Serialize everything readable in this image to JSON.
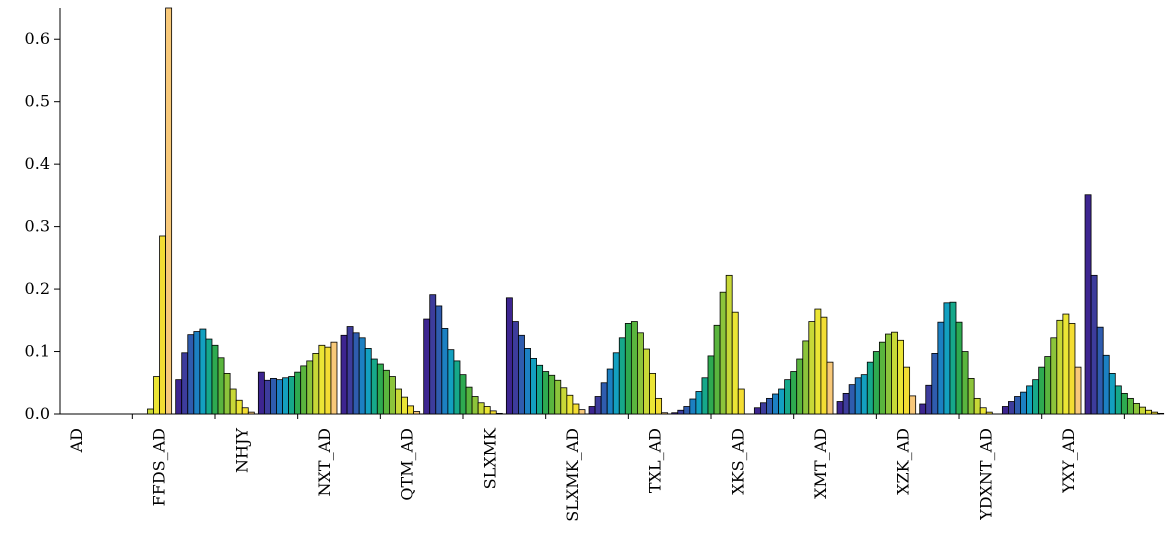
{
  "chart_data": {
    "type": "bar",
    "title": "",
    "xlabel": "",
    "ylabel": "",
    "ylim": [
      0,
      0.65
    ],
    "yticks": [
      0.0,
      0.1,
      0.2,
      0.3,
      0.4,
      0.5,
      0.6
    ],
    "ytick_labels": [
      "0.0",
      "0.1",
      "0.2",
      "0.3",
      "0.4",
      "0.5",
      "0.6"
    ],
    "bin_colors": [
      "#3d2590",
      "#3d3c9c",
      "#2f5cae",
      "#1c80c2",
      "#13a0c0",
      "#16a88a",
      "#2eaa50",
      "#5ab53e",
      "#8cc43b",
      "#c8d837",
      "#ebe535",
      "#f3dd33",
      "#f8c97a"
    ],
    "categories": [
      "AD",
      "FFDS_AD",
      "NHJY",
      "NXT_AD",
      "QTM_AD",
      "SLXMK",
      "SLXMK_AD",
      "TXL_AD",
      "XKS_AD",
      "XMT_AD",
      "XZK_AD",
      "YDXNT_AD",
      "YXY_AD"
    ],
    "series": [
      {
        "values": [
          0.0,
          0.0,
          0.0,
          0.0,
          0.0,
          0.0,
          0.0,
          0.0,
          0.0,
          0.008,
          0.06,
          0.285,
          0.65
        ]
      },
      {
        "values": [
          0.055,
          0.098,
          0.127,
          0.132,
          0.136,
          0.12,
          0.11,
          0.09,
          0.065,
          0.04,
          0.022,
          0.01,
          0.003
        ]
      },
      {
        "values": [
          0.067,
          0.054,
          0.057,
          0.055,
          0.058,
          0.06,
          0.067,
          0.077,
          0.085,
          0.097,
          0.11,
          0.107,
          0.115
        ]
      },
      {
        "values": [
          0.126,
          0.14,
          0.13,
          0.122,
          0.105,
          0.088,
          0.08,
          0.07,
          0.06,
          0.04,
          0.027,
          0.013,
          0.004
        ]
      },
      {
        "values": [
          0.152,
          0.191,
          0.173,
          0.137,
          0.103,
          0.085,
          0.063,
          0.043,
          0.028,
          0.018,
          0.012,
          0.005,
          0.001
        ]
      },
      {
        "values": [
          0.186,
          0.148,
          0.126,
          0.105,
          0.089,
          0.078,
          0.068,
          0.062,
          0.054,
          0.042,
          0.03,
          0.016,
          0.007
        ]
      },
      {
        "values": [
          0.012,
          0.028,
          0.05,
          0.072,
          0.098,
          0.122,
          0.145,
          0.148,
          0.13,
          0.104,
          0.065,
          0.025,
          0.002
        ]
      },
      {
        "values": [
          0.002,
          0.006,
          0.012,
          0.024,
          0.036,
          0.058,
          0.093,
          0.142,
          0.195,
          0.222,
          0.163,
          0.04,
          0.0
        ]
      },
      {
        "values": [
          0.01,
          0.018,
          0.025,
          0.032,
          0.04,
          0.055,
          0.068,
          0.088,
          0.117,
          0.148,
          0.168,
          0.155,
          0.083
        ]
      },
      {
        "values": [
          0.02,
          0.033,
          0.047,
          0.058,
          0.063,
          0.083,
          0.1,
          0.115,
          0.128,
          0.131,
          0.118,
          0.075,
          0.029
        ]
      },
      {
        "values": [
          0.016,
          0.046,
          0.097,
          0.147,
          0.178,
          0.179,
          0.147,
          0.1,
          0.057,
          0.025,
          0.01,
          0.003,
          0.0
        ]
      },
      {
        "values": [
          0.012,
          0.02,
          0.028,
          0.035,
          0.045,
          0.055,
          0.075,
          0.092,
          0.122,
          0.15,
          0.16,
          0.145,
          0.075
        ]
      },
      {
        "values": [
          0.351,
          0.222,
          0.139,
          0.094,
          0.065,
          0.045,
          0.033,
          0.025,
          0.017,
          0.011,
          0.006,
          0.003,
          0.001
        ]
      }
    ]
  }
}
